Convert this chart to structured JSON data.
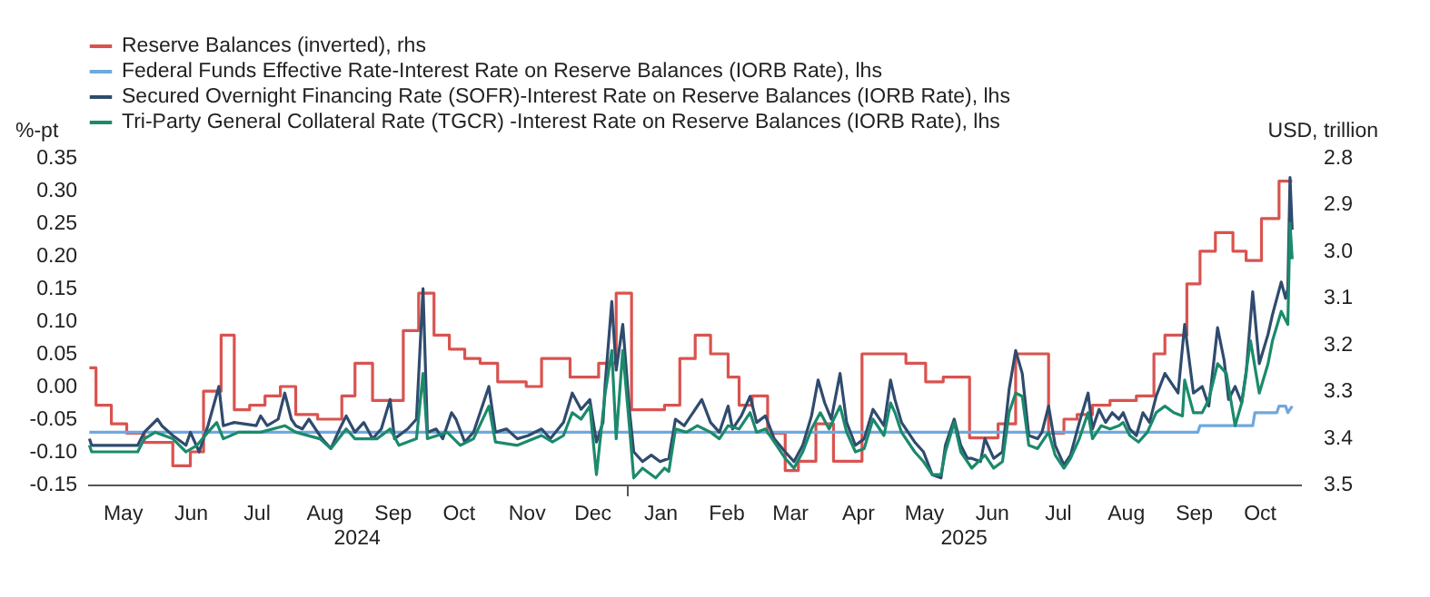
{
  "chart_data": {
    "type": "line",
    "ylabel": "%-pt",
    "y2label": "USD, trillion",
    "legend": "top",
    "grid": false,
    "xlim": [
      "2024-04-30",
      "2025-11-04"
    ],
    "xticks": [
      {
        "value": "2024-05-16",
        "label": "May"
      },
      {
        "value": "2024-06-16",
        "label": "Jun"
      },
      {
        "value": "2024-07-16",
        "label": "Jul"
      },
      {
        "value": "2024-08-16",
        "label": "Aug"
      },
      {
        "value": "2024-09-16",
        "label": "Sep"
      },
      {
        "value": "2024-10-16",
        "label": "Oct"
      },
      {
        "value": "2024-11-16",
        "label": "Nov"
      },
      {
        "value": "2024-12-16",
        "label": "Dec"
      },
      {
        "value": "2025-01-01",
        "label": null
      },
      {
        "value": "2025-01-16",
        "label": "Jan"
      },
      {
        "value": "2025-02-15",
        "label": "Feb"
      },
      {
        "value": "2025-03-16",
        "label": "Mar"
      },
      {
        "value": "2025-04-16",
        "label": "Apr"
      },
      {
        "value": "2025-05-16",
        "label": "May"
      },
      {
        "value": "2025-06-16",
        "label": "Jun"
      },
      {
        "value": "2025-07-16",
        "label": "Jul"
      },
      {
        "value": "2025-08-16",
        "label": "Aug"
      },
      {
        "value": "2025-09-16",
        "label": "Sep"
      },
      {
        "value": "2025-10-16",
        "label": "Oct"
      }
    ],
    "ylim": [
      -0.15,
      0.35
    ],
    "yticks": [
      0.35,
      {
        "value": 0.3,
        "label": "0.30"
      },
      0.25,
      {
        "value": 0.2,
        "label": "0.20"
      },
      0.15,
      {
        "value": 0.1,
        "label": "0.10"
      },
      0.05,
      {
        "value": 0,
        "label": "0.00"
      },
      -0.05,
      {
        "value": -0.1,
        "label": "-0.10"
      },
      -0.15
    ],
    "y2lim": [
      3.5,
      2.8
    ],
    "y2ticks": [
      2.8,
      2.9,
      {
        "value": 3,
        "label": "3.0"
      },
      3.1,
      3.2,
      3.3,
      3.4,
      3.5
    ],
    "annotations": [
      "2024",
      "2025"
    ],
    "series": [
      {
        "name": "Reserve Balances (inverted), rhs",
        "color": "#d9534f",
        "type": "step",
        "axis": "y2",
        "x": [
          "2024-05-01",
          "2024-05-04",
          "2024-05-11",
          "2024-05-18",
          "2024-05-26",
          "2024-06-08",
          "2024-06-16",
          "2024-06-22",
          "2024-06-30",
          "2024-07-06",
          "2024-07-13",
          "2024-07-20",
          "2024-07-27",
          "2024-08-03",
          "2024-08-13",
          "2024-08-24",
          "2024-08-30",
          "2024-09-07",
          "2024-09-21",
          "2024-09-28",
          "2024-10-05",
          "2024-10-12",
          "2024-10-19",
          "2024-10-26",
          "2024-11-03",
          "2024-11-16",
          "2024-11-23",
          "2024-12-06",
          "2024-12-19",
          "2024-12-27",
          "2025-01-03",
          "2025-01-18",
          "2025-01-25",
          "2025-02-01",
          "2025-02-08",
          "2025-02-16",
          "2025-02-21",
          "2025-02-27",
          "2025-03-06",
          "2025-03-14",
          "2025-03-20",
          "2025-03-28",
          "2025-04-05",
          "2025-04-18",
          "2025-05-08",
          "2025-05-17",
          "2025-05-25",
          "2025-06-06",
          "2025-06-19",
          "2025-06-27",
          "2025-07-12",
          "2025-07-19",
          "2025-07-25",
          "2025-08-01",
          "2025-08-09",
          "2025-08-21",
          "2025-08-29",
          "2025-09-03",
          "2025-09-13",
          "2025-09-19",
          "2025-09-26",
          "2025-10-04",
          "2025-10-10",
          "2025-10-17",
          "2025-10-25",
          "2025-10-31"
        ],
        "values": [
          3.25,
          3.33,
          3.37,
          3.39,
          3.41,
          3.46,
          3.43,
          3.3,
          3.18,
          3.34,
          3.33,
          3.31,
          3.29,
          3.35,
          3.36,
          3.31,
          3.24,
          3.32,
          3.17,
          3.09,
          3.18,
          3.21,
          3.23,
          3.24,
          3.28,
          3.29,
          3.23,
          3.27,
          3.24,
          3.09,
          3.34,
          3.33,
          3.23,
          3.18,
          3.22,
          3.27,
          3.33,
          3.31,
          3.39,
          3.47,
          3.45,
          3.37,
          3.45,
          3.22,
          3.24,
          3.28,
          3.27,
          3.4,
          3.37,
          3.22,
          3.39,
          3.36,
          3.35,
          3.33,
          3.32,
          3.31,
          3.22,
          3.18,
          3.07,
          3.0,
          2.96,
          3.0,
          3.02,
          2.93,
          2.85,
          2.85
        ]
      },
      {
        "name": "Federal Funds Effective Rate-Interest Rate on Reserve Balances (IORB Rate), lhs",
        "color": "#6fa8dc",
        "x": [
          "2024-05-01",
          "2025-09-18",
          "2025-09-19",
          "2025-10-13",
          "2025-10-14",
          "2025-10-24",
          "2025-10-25",
          "2025-10-28",
          "2025-10-29",
          "2025-10-31"
        ],
        "values": [
          -0.07,
          -0.07,
          -0.06,
          -0.06,
          -0.04,
          -0.04,
          -0.03,
          -0.03,
          -0.04,
          -0.03
        ]
      },
      {
        "name": "Secured Overnight Financing Rate (SOFR)-Interest Rate on Reserve Balances (IORB Rate), lhs",
        "color": "#2f4b6e",
        "x": [
          "2024-05-01",
          "2024-05-02",
          "2024-05-23",
          "2024-05-26",
          "2024-06-01",
          "2024-06-03",
          "2024-06-08",
          "2024-06-14",
          "2024-06-16",
          "2024-06-20",
          "2024-06-24",
          "2024-06-29",
          "2024-07-01",
          "2024-07-06",
          "2024-07-16",
          "2024-07-18",
          "2024-07-21",
          "2024-07-26",
          "2024-07-29",
          "2024-08-01",
          "2024-08-03",
          "2024-08-06",
          "2024-08-09",
          "2024-08-15",
          "2024-08-19",
          "2024-08-23",
          "2024-08-26",
          "2024-08-30",
          "2024-09-03",
          "2024-09-07",
          "2024-09-11",
          "2024-09-15",
          "2024-09-17",
          "2024-09-23",
          "2024-09-27",
          "2024-09-30",
          "2024-10-02",
          "2024-10-06",
          "2024-10-09",
          "2024-10-13",
          "2024-10-15",
          "2024-10-19",
          "2024-10-23",
          "2024-10-30",
          "2024-11-02",
          "2024-11-07",
          "2024-11-12",
          "2024-11-17",
          "2024-11-23",
          "2024-11-27",
          "2024-12-03",
          "2024-12-07",
          "2024-12-11",
          "2024-12-15",
          "2024-12-18",
          "2024-12-21",
          "2024-12-22",
          "2024-12-25",
          "2024-12-27",
          "2024-12-30",
          "2025-01-02",
          "2025-01-04",
          "2025-01-08",
          "2025-01-12",
          "2025-01-16",
          "2025-01-20",
          "2025-01-23",
          "2025-01-27",
          "2025-01-31",
          "2025-02-04",
          "2025-02-08",
          "2025-02-12",
          "2025-02-16",
          "2025-02-18",
          "2025-02-22",
          "2025-02-26",
          "2025-03-01",
          "2025-03-05",
          "2025-03-09",
          "2025-03-14",
          "2025-03-18",
          "2025-03-22",
          "2025-03-26",
          "2025-03-29",
          "2025-04-01",
          "2025-04-04",
          "2025-04-08",
          "2025-04-11",
          "2025-04-15",
          "2025-04-19",
          "2025-04-23",
          "2025-04-28",
          "2025-05-01",
          "2025-05-03",
          "2025-05-06",
          "2025-05-12",
          "2025-05-16",
          "2025-05-20",
          "2025-05-24",
          "2025-05-26",
          "2025-05-30",
          "2025-06-02",
          "2025-06-05",
          "2025-06-07",
          "2025-06-11",
          "2025-06-13",
          "2025-06-17",
          "2025-06-21",
          "2025-06-24",
          "2025-06-27",
          "2025-06-30",
          "2025-07-03",
          "2025-07-07",
          "2025-07-09",
          "2025-07-12",
          "2025-07-15",
          "2025-07-19",
          "2025-07-22",
          "2025-07-26",
          "2025-07-30",
          "2025-08-01",
          "2025-08-04",
          "2025-08-07",
          "2025-08-10",
          "2025-08-13",
          "2025-08-15",
          "2025-08-18",
          "2025-08-21",
          "2025-08-24",
          "2025-08-27",
          "2025-08-30",
          "2025-09-03",
          "2025-09-06",
          "2025-09-09",
          "2025-09-12",
          "2025-09-16",
          "2025-09-20",
          "2025-09-23",
          "2025-09-27",
          "2025-09-30",
          "2025-10-02",
          "2025-10-05",
          "2025-10-08",
          "2025-10-10",
          "2025-10-13",
          "2025-10-16",
          "2025-10-20",
          "2025-10-22",
          "2025-10-26",
          "2025-10-28",
          "2025-10-29",
          "2025-10-30",
          "2025-10-31"
        ],
        "values": [
          -0.08,
          -0.09,
          -0.09,
          -0.07,
          -0.05,
          -0.06,
          -0.075,
          -0.09,
          -0.07,
          -0.1,
          -0.06,
          0.0,
          -0.06,
          -0.055,
          -0.06,
          -0.045,
          -0.06,
          -0.05,
          -0.01,
          -0.05,
          -0.06,
          -0.065,
          -0.05,
          -0.08,
          -0.095,
          -0.065,
          -0.045,
          -0.07,
          -0.055,
          -0.08,
          -0.065,
          -0.02,
          -0.08,
          -0.065,
          -0.05,
          0.15,
          -0.07,
          -0.065,
          -0.08,
          -0.04,
          -0.05,
          -0.085,
          -0.07,
          0.0,
          -0.07,
          -0.065,
          -0.08,
          -0.075,
          -0.065,
          -0.08,
          -0.055,
          -0.01,
          -0.035,
          -0.02,
          -0.085,
          -0.055,
          0.005,
          0.13,
          0.025,
          0.095,
          -0.035,
          -0.1,
          -0.115,
          -0.105,
          -0.115,
          -0.11,
          -0.05,
          -0.06,
          -0.04,
          -0.02,
          -0.055,
          -0.07,
          -0.03,
          -0.065,
          -0.045,
          -0.015,
          -0.055,
          -0.045,
          -0.08,
          -0.1,
          -0.115,
          -0.09,
          -0.045,
          0.01,
          -0.025,
          -0.05,
          0.02,
          -0.055,
          -0.09,
          -0.08,
          -0.035,
          -0.06,
          0.01,
          -0.02,
          -0.055,
          -0.085,
          -0.1,
          -0.135,
          -0.14,
          -0.09,
          -0.05,
          -0.09,
          -0.11,
          -0.11,
          -0.115,
          -0.08,
          -0.11,
          -0.1,
          -0.005,
          0.055,
          0.02,
          -0.075,
          -0.08,
          -0.07,
          -0.03,
          -0.09,
          -0.12,
          -0.105,
          -0.055,
          -0.01,
          -0.065,
          -0.035,
          -0.055,
          -0.04,
          -0.05,
          -0.04,
          -0.065,
          -0.075,
          -0.04,
          -0.055,
          -0.015,
          0.02,
          0.005,
          -0.01,
          0.095,
          -0.01,
          0.0,
          -0.03,
          0.09,
          0.04,
          -0.02,
          0.0,
          -0.025,
          0.02,
          0.145,
          0.035,
          0.08,
          0.11,
          0.16,
          0.135,
          0.15,
          0.32,
          0.24
        ]
      },
      {
        "name": "Tri-Party General Collateral Rate (TGCR) -Interest Rate on Reserve Balances (IORB Rate), lhs",
        "color": "#1b8a6b",
        "x": [
          "2024-05-01",
          "2024-05-02",
          "2024-05-23",
          "2024-05-26",
          "2024-05-31",
          "2024-06-08",
          "2024-06-14",
          "2024-06-19",
          "2024-06-24",
          "2024-06-28",
          "2024-07-01",
          "2024-07-08",
          "2024-07-18",
          "2024-07-29",
          "2024-08-03",
          "2024-08-14",
          "2024-08-19",
          "2024-08-26",
          "2024-08-30",
          "2024-09-09",
          "2024-09-15",
          "2024-09-19",
          "2024-09-27",
          "2024-09-30",
          "2024-10-02",
          "2024-10-11",
          "2024-10-17",
          "2024-10-23",
          "2024-10-30",
          "2024-11-02",
          "2024-11-12",
          "2024-11-23",
          "2024-11-28",
          "2024-12-03",
          "2024-12-07",
          "2024-12-11",
          "2024-12-15",
          "2024-12-18",
          "2024-12-22",
          "2024-12-25",
          "2024-12-27",
          "2024-12-30",
          "2025-01-02",
          "2025-01-04",
          "2025-01-08",
          "2025-01-14",
          "2025-01-18",
          "2025-01-20",
          "2025-01-23",
          "2025-01-28",
          "2025-02-02",
          "2025-02-08",
          "2025-02-12",
          "2025-02-16",
          "2025-02-21",
          "2025-02-26",
          "2025-03-01",
          "2025-03-05",
          "2025-03-09",
          "2025-03-14",
          "2025-03-18",
          "2025-03-22",
          "2025-03-26",
          "2025-03-30",
          "2025-04-03",
          "2025-04-08",
          "2025-04-11",
          "2025-04-15",
          "2025-04-19",
          "2025-04-23",
          "2025-04-28",
          "2025-05-01",
          "2025-05-03",
          "2025-05-06",
          "2025-05-12",
          "2025-05-16",
          "2025-05-20",
          "2025-05-24",
          "2025-05-26",
          "2025-05-30",
          "2025-06-02",
          "2025-06-07",
          "2025-06-13",
          "2025-06-17",
          "2025-06-21",
          "2025-06-24",
          "2025-06-27",
          "2025-06-30",
          "2025-07-03",
          "2025-07-07",
          "2025-07-12",
          "2025-07-15",
          "2025-07-19",
          "2025-07-22",
          "2025-07-26",
          "2025-07-30",
          "2025-08-01",
          "2025-08-05",
          "2025-08-09",
          "2025-08-13",
          "2025-08-15",
          "2025-08-18",
          "2025-08-22",
          "2025-08-26",
          "2025-08-30",
          "2025-09-03",
          "2025-09-07",
          "2025-09-11",
          "2025-09-12",
          "2025-09-16",
          "2025-09-20",
          "2025-09-23",
          "2025-09-27",
          "2025-10-01",
          "2025-10-05",
          "2025-10-08",
          "2025-10-12",
          "2025-10-16",
          "2025-10-20",
          "2025-10-22",
          "2025-10-26",
          "2025-10-29",
          "2025-10-30",
          "2025-10-31"
        ],
        "values": [
          -0.09,
          -0.1,
          -0.1,
          -0.08,
          -0.07,
          -0.08,
          -0.1,
          -0.09,
          -0.07,
          -0.055,
          -0.08,
          -0.07,
          -0.07,
          -0.06,
          -0.07,
          -0.08,
          -0.095,
          -0.065,
          -0.08,
          -0.08,
          -0.065,
          -0.09,
          -0.08,
          0.02,
          -0.08,
          -0.07,
          -0.09,
          -0.08,
          -0.03,
          -0.085,
          -0.09,
          -0.075,
          -0.085,
          -0.075,
          -0.04,
          -0.05,
          -0.03,
          -0.135,
          -0.01,
          0.055,
          -0.08,
          0.055,
          -0.06,
          -0.14,
          -0.125,
          -0.14,
          -0.125,
          -0.13,
          -0.065,
          -0.07,
          -0.06,
          -0.07,
          -0.08,
          -0.06,
          -0.065,
          -0.04,
          -0.07,
          -0.065,
          -0.085,
          -0.11,
          -0.125,
          -0.1,
          -0.065,
          -0.04,
          -0.065,
          -0.03,
          -0.07,
          -0.1,
          -0.095,
          -0.05,
          -0.075,
          -0.025,
          -0.04,
          -0.07,
          -0.1,
          -0.115,
          -0.135,
          -0.135,
          -0.1,
          -0.055,
          -0.1,
          -0.125,
          -0.105,
          -0.125,
          -0.115,
          -0.04,
          -0.01,
          -0.015,
          -0.09,
          -0.095,
          -0.07,
          -0.105,
          -0.125,
          -0.11,
          -0.08,
          -0.04,
          -0.08,
          -0.06,
          -0.065,
          -0.06,
          -0.055,
          -0.075,
          -0.085,
          -0.07,
          -0.04,
          -0.03,
          -0.04,
          -0.045,
          0.01,
          -0.04,
          -0.04,
          -0.02,
          0.035,
          0.02,
          -0.06,
          -0.025,
          0.07,
          -0.01,
          0.035,
          0.07,
          0.115,
          0.095,
          0.25,
          0.195
        ]
      }
    ]
  }
}
